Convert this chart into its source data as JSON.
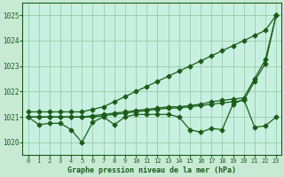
{
  "x": [
    0,
    1,
    2,
    3,
    4,
    5,
    6,
    7,
    8,
    9,
    10,
    11,
    12,
    13,
    14,
    15,
    16,
    17,
    18,
    19,
    20,
    21,
    22,
    23
  ],
  "line_upper": [
    1021.2,
    1021.2,
    1021.2,
    1021.2,
    1021.2,
    1021.2,
    1021.3,
    1021.4,
    1021.6,
    1021.8,
    1022.0,
    1022.2,
    1022.4,
    1022.6,
    1022.8,
    1023.0,
    1023.2,
    1023.4,
    1023.6,
    1023.8,
    1024.0,
    1024.2,
    1024.4,
    1025.0
  ],
  "line_mid1": [
    1021.0,
    1021.0,
    1021.0,
    1021.0,
    1021.0,
    1021.0,
    1021.05,
    1021.1,
    1021.15,
    1021.2,
    1021.25,
    1021.3,
    1021.35,
    1021.4,
    1021.4,
    1021.45,
    1021.5,
    1021.6,
    1021.65,
    1021.7,
    1021.75,
    1022.5,
    1023.25,
    1025.0
  ],
  "line_mid2": [
    1021.0,
    1021.0,
    1021.0,
    1021.0,
    1021.0,
    1021.0,
    1021.0,
    1021.05,
    1021.1,
    1021.15,
    1021.2,
    1021.25,
    1021.3,
    1021.35,
    1021.35,
    1021.4,
    1021.45,
    1021.5,
    1021.55,
    1021.6,
    1021.65,
    1022.4,
    1023.1,
    1025.0
  ],
  "line_jagged": [
    1021.0,
    1020.7,
    1020.75,
    1020.75,
    1020.5,
    1020.0,
    1020.8,
    1021.0,
    1020.7,
    1021.0,
    1021.1,
    1021.1,
    1021.1,
    1021.1,
    1021.0,
    1020.5,
    1020.4,
    1020.55,
    1020.5,
    1021.5,
    1021.7,
    1020.6,
    1020.65,
    1021.0
  ],
  "bg_color": "#c8ead5",
  "plot_bg": "#c8f0e0",
  "line_color": "#1a5e1a",
  "grid_color": "#99ccaa",
  "text_color": "#1a5e1a",
  "xlabel": "Graphe pression niveau de la mer (hPa)",
  "ylim": [
    1019.5,
    1025.5
  ],
  "yticks": [
    1020,
    1021,
    1022,
    1023,
    1024,
    1025
  ],
  "xticks": [
    0,
    1,
    2,
    3,
    4,
    5,
    6,
    7,
    8,
    9,
    10,
    11,
    12,
    13,
    14,
    15,
    16,
    17,
    18,
    19,
    20,
    21,
    22,
    23
  ]
}
